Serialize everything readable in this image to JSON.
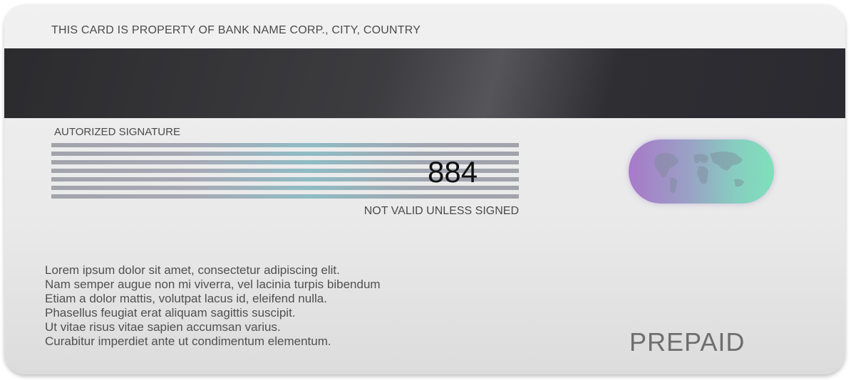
{
  "card": {
    "property_text": "THIS CARD IS PROPERTY OF BANK NAME  CORP.,  CITY, COUNTRY",
    "signature_label": "AUTORIZED SIGNATURE",
    "cvv": "884",
    "not_valid_text": "NOT VALID UNLESS SIGNED",
    "lorem_lines": [
      "Lorem ipsum dolor sit amet, consectetur adipiscing elit.",
      "Nam semper augue non mi viverra, vel lacinia turpis bibendum",
      "Etiam a dolor mattis, volutpat lacus id, eleifend nulla.",
      "Phasellus feugiat erat aliquam sagittis suscipit.",
      "Ut vitae risus vitae sapien accumsan varius.",
      "Curabitur imperdiet ante ut condimentum elementum."
    ],
    "prepaid_label": "PREPAID"
  },
  "colors": {
    "magnetic_stripe": "#2b2b2e",
    "hologram_left": "#a879c9",
    "hologram_right": "#7fe0ba"
  },
  "icons": {
    "hologram": "world-map-hologram-icon"
  }
}
